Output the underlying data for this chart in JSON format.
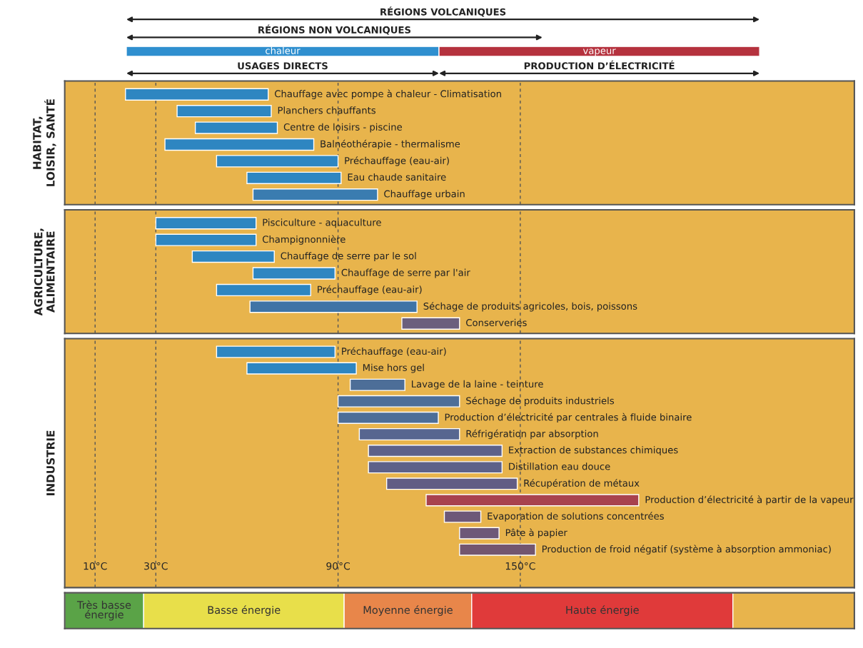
{
  "chart_data": [
    {
      "type": "bar",
      "orientation": "horizontal",
      "ylabel": "HABITAT,\nLOISIR, SANTÉ",
      "categories": [
        "Chauffage avec pompe à chaleur - Climatisation",
        "Planchers chauffants",
        "Centre de loisirs - piscine",
        "Balnéothérapie - thermalisme",
        "Préchauffage (eau-air)",
        "Eau chaude sanitaire",
        "Chauffage urbain"
      ],
      "base": [
        20,
        37,
        43,
        33,
        50,
        60,
        62
      ],
      "values": [
        47,
        31,
        27,
        49,
        40,
        31,
        41
      ],
      "colors": [
        "#2e86c1",
        "#2e86c1",
        "#2e86c1",
        "#2e86c1",
        "#2e86c1",
        "#2e86c1",
        "#3a7cb0"
      ],
      "xlim": [
        0,
        260
      ],
      "xticks": [
        10,
        30,
        90,
        150
      ],
      "grid": "x",
      "tick_labels": false,
      "annotations": [
        "RÉGIONS VOLCANIQUES",
        "RÉGIONS NON VOLCANIQUES",
        "chaleur",
        "vapeur",
        "USAGES DIRECTS",
        "PRODUCTION D’ÉLECTRICITÉ"
      ]
    },
    {
      "type": "bar",
      "orientation": "horizontal",
      "ylabel": "AGRICULTURE,\nALIMENTAIRE",
      "categories": [
        "Pisciculture - aquaculture",
        "Champignonnière",
        "Chauffage de serre par le sol",
        "Chauffage de serre par l'air",
        "Préchauffage (eau-air)",
        "Séchage de produits agricoles, bois, poissons",
        "Conserveries"
      ],
      "base": [
        30,
        30,
        42,
        62,
        50,
        61,
        111
      ],
      "values": [
        33,
        33,
        27,
        27,
        31,
        55,
        19
      ],
      "colors": [
        "#2e86c1",
        "#2e86c1",
        "#2e86c1",
        "#2e86c1",
        "#2e86c1",
        "#3f74a6",
        "#6b5f7d"
      ],
      "xlim": [
        0,
        260
      ],
      "xticks": [
        10,
        30,
        90,
        150
      ],
      "grid": "x",
      "tick_labels": false
    },
    {
      "type": "bar",
      "orientation": "horizontal",
      "ylabel": "INDUSTRIE",
      "categories": [
        "Préchauffage (eau-air)",
        "Mise hors gel",
        "Lavage de la laine - teinture",
        "Séchage de produits industriels",
        "Production d’électricité par centrales à fluide binaire",
        "Réfrigération par absorption",
        "Extraction de substances chimiques",
        "Distillation eau douce",
        "Récupération de métaux",
        "Production d’électricité à partir de la vapeur",
        "Evaporation de solutions concentrées",
        "Pâte à papier",
        "Production de froid négatif (système à absorption ammoniac)"
      ],
      "base": [
        50,
        60,
        94,
        90,
        90,
        97,
        100,
        100,
        106,
        119,
        125,
        130,
        130
      ],
      "values": [
        39,
        36,
        18,
        40,
        33,
        33,
        44,
        44,
        43,
        70,
        12,
        13,
        25
      ],
      "colors": [
        "#2e86c1",
        "#2e86c1",
        "#4d6e98",
        "#4d6e98",
        "#4d6e98",
        "#576690",
        "#5d6189",
        "#5d6189",
        "#625d84",
        "#a8424e",
        "#6d5878",
        "#6d5878",
        "#73566f"
      ],
      "xlim": [
        0,
        260
      ],
      "xticks": [
        {
          "value": 10,
          "label": "10°C"
        },
        {
          "value": 30,
          "label": "30°C"
        },
        {
          "value": 90,
          "label": "90°C"
        },
        {
          "value": 150,
          "label": "150°C"
        }
      ],
      "grid": "x",
      "tick_labels": "x"
    },
    {
      "type": "bar",
      "orientation": "horizontal",
      "stacked": true,
      "categories": [
        null
      ],
      "series": [
        {
          "name": "Très basse\nénergie",
          "color": "#5aa347",
          "values": [
            26
          ]
        },
        {
          "name": "Basse énergie",
          "color": "#e8df4a",
          "values": [
            66
          ]
        },
        {
          "name": "Moyenne énergie",
          "color": "#e8864a",
          "values": [
            42
          ]
        },
        {
          "name": "Haute énergie",
          "color": "#e03a3a",
          "values": [
            86
          ]
        },
        {
          "color": "#e8b44c",
          "values": [
            40
          ]
        }
      ],
      "xlim": [
        0,
        260
      ],
      "tick_labels": false
    }
  ]
}
